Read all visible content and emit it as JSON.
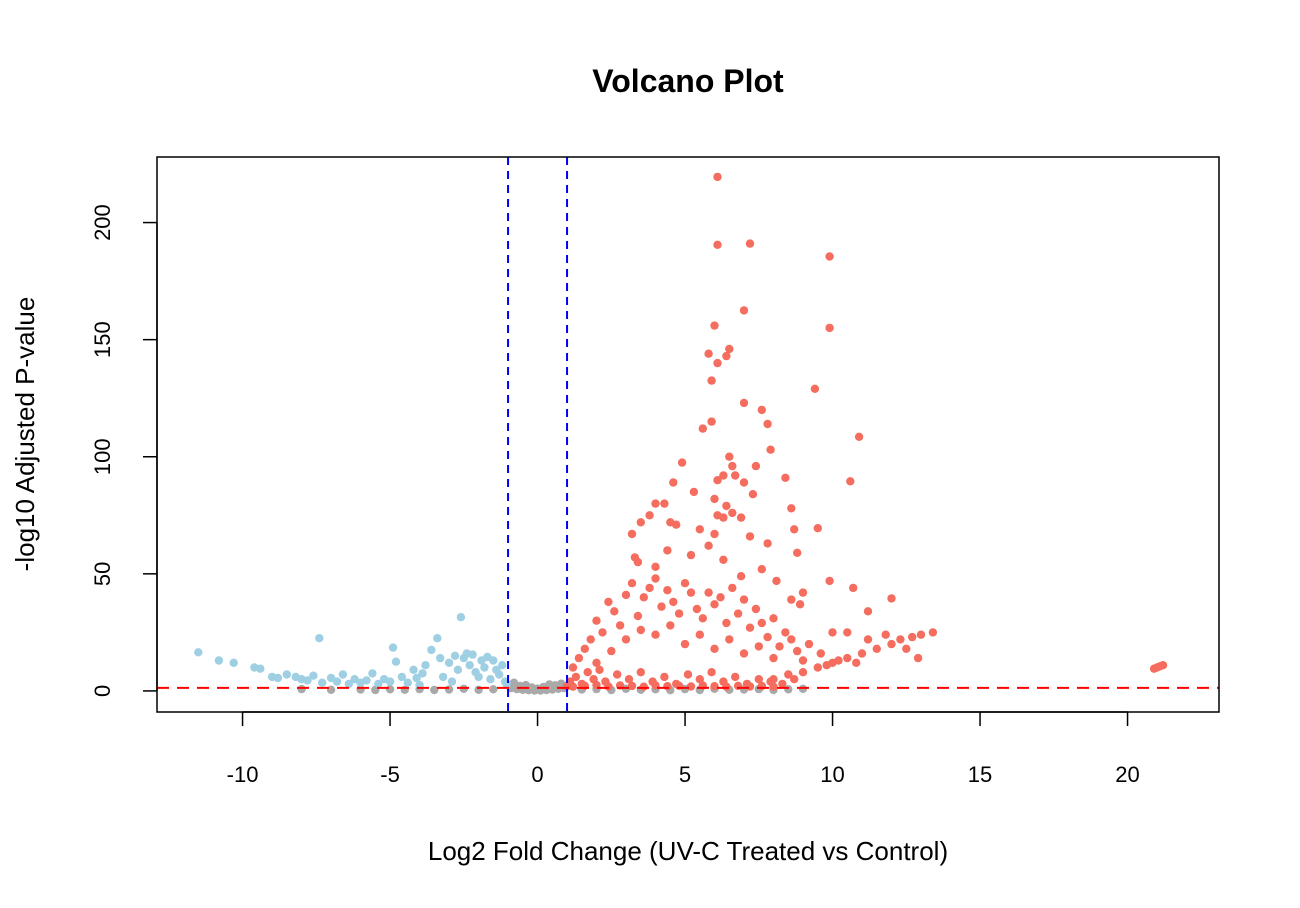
{
  "chart_data": {
    "type": "scatter",
    "title": "Volcano Plot",
    "xlabel": "Log2 Fold Change (UV-C Treated vs Control)",
    "ylabel": "-log10 Adjusted P-value",
    "xlim": [
      -12.9,
      23.1
    ],
    "ylim": [
      -9,
      228
    ],
    "x_ticks": [
      -10,
      -5,
      0,
      5,
      10,
      15,
      20
    ],
    "x_tick_labels": [
      "-10",
      "-5",
      "0",
      "5",
      "10",
      "15",
      "20"
    ],
    "y_ticks": [
      0,
      50,
      100,
      150,
      200
    ],
    "y_tick_labels": [
      "0",
      "50",
      "100",
      "150",
      "200"
    ],
    "grid": false,
    "legend": "none",
    "thresholds": {
      "log2fc": [
        -1,
        1
      ],
      "neg_log10_padj": 1.3,
      "vline_color": "#0000ff",
      "hline_color": "#ff0000"
    },
    "colors": {
      "up": "#f46d5f",
      "down": "#9ecfe2",
      "ns": "#a9a9a9"
    },
    "series": [
      {
        "group": "ns",
        "points": [
          [
            -0.9,
            1.2
          ],
          [
            -0.7,
            0.8
          ],
          [
            -0.5,
            0.5
          ],
          [
            -0.3,
            0.3
          ],
          [
            -0.1,
            0.2
          ],
          [
            0.1,
            0.2
          ],
          [
            0.3,
            0.4
          ],
          [
            0.5,
            0.6
          ],
          [
            0.7,
            0.9
          ],
          [
            0.9,
            1.2
          ],
          [
            -0.8,
            3.5
          ],
          [
            -0.6,
            2.1
          ],
          [
            0.6,
            2.4
          ],
          [
            0.8,
            3.1
          ],
          [
            1.5,
            0.6
          ],
          [
            2.0,
            0.8
          ],
          [
            2.5,
            0.4
          ],
          [
            3.0,
            0.9
          ],
          [
            3.5,
            0.5
          ],
          [
            4.0,
            0.7
          ],
          [
            4.5,
            0.3
          ],
          [
            5.0,
            0.8
          ],
          [
            5.5,
            0.4
          ],
          [
            6.0,
            0.9
          ],
          [
            6.5,
            0.5
          ],
          [
            7.0,
            0.6
          ],
          [
            7.5,
            0.8
          ],
          [
            8.0,
            0.4
          ],
          [
            8.5,
            0.7
          ],
          [
            9.0,
            0.9
          ],
          [
            -1.5,
            0.7
          ],
          [
            -2.0,
            0.5
          ],
          [
            -2.5,
            0.9
          ],
          [
            -3.0,
            0.6
          ],
          [
            -3.5,
            0.4
          ],
          [
            -4.0,
            0.8
          ],
          [
            -4.5,
            0.5
          ],
          [
            -5.0,
            0.7
          ],
          [
            -5.5,
            0.4
          ],
          [
            -6.0,
            0.6
          ],
          [
            -7.0,
            0.5
          ],
          [
            -8.0,
            0.8
          ],
          [
            0.0,
            1.0
          ],
          [
            -0.2,
            1.5
          ],
          [
            0.2,
            1.7
          ],
          [
            0.4,
            2.8
          ],
          [
            -0.4,
            2.5
          ]
        ]
      },
      {
        "group": "down",
        "points": [
          [
            -11.5,
            16.5
          ],
          [
            -10.8,
            13
          ],
          [
            -10.3,
            12
          ],
          [
            -9.6,
            10
          ],
          [
            -9.4,
            9.5
          ],
          [
            -9.0,
            6
          ],
          [
            -8.8,
            5.5
          ],
          [
            -8.5,
            7
          ],
          [
            -8.2,
            6
          ],
          [
            -8.0,
            5
          ],
          [
            -7.8,
            4.5
          ],
          [
            -7.6,
            6.5
          ],
          [
            -7.4,
            22.5
          ],
          [
            -7.3,
            3.5
          ],
          [
            -7.0,
            5.5
          ],
          [
            -6.8,
            4
          ],
          [
            -6.6,
            7
          ],
          [
            -6.4,
            3
          ],
          [
            -6.2,
            5
          ],
          [
            -6.0,
            3.5
          ],
          [
            -5.8,
            4.5
          ],
          [
            -5.6,
            7.5
          ],
          [
            -5.4,
            3
          ],
          [
            -5.2,
            5
          ],
          [
            -5.0,
            4
          ],
          [
            -4.9,
            18.5
          ],
          [
            -4.8,
            12.5
          ],
          [
            -4.6,
            6
          ],
          [
            -4.4,
            3.5
          ],
          [
            -4.2,
            9
          ],
          [
            -4.1,
            5.5
          ],
          [
            -4.0,
            2.5
          ],
          [
            -3.9,
            7.5
          ],
          [
            -3.8,
            11
          ],
          [
            -3.6,
            17.5
          ],
          [
            -3.4,
            22.5
          ],
          [
            -3.3,
            14
          ],
          [
            -3.2,
            6
          ],
          [
            -3.0,
            12
          ],
          [
            -2.9,
            4
          ],
          [
            -2.8,
            15
          ],
          [
            -2.7,
            9
          ],
          [
            -2.6,
            31.5
          ],
          [
            -2.5,
            14
          ],
          [
            -2.4,
            16
          ],
          [
            -2.3,
            11
          ],
          [
            -2.2,
            15.5
          ],
          [
            -2.1,
            8
          ],
          [
            -2.0,
            6
          ],
          [
            -1.9,
            13
          ],
          [
            -1.8,
            10
          ],
          [
            -1.7,
            14.5
          ],
          [
            -1.6,
            5
          ],
          [
            -1.5,
            13
          ],
          [
            -1.4,
            9
          ],
          [
            -1.3,
            7
          ],
          [
            -1.2,
            11
          ],
          [
            -1.1,
            4
          ],
          [
            -1.05,
            3
          ]
        ]
      },
      {
        "group": "up",
        "points": [
          [
            6.1,
            219.5
          ],
          [
            6.1,
            190.5
          ],
          [
            7.2,
            191
          ],
          [
            9.9,
            185.5
          ],
          [
            7.0,
            162.5
          ],
          [
            9.9,
            155
          ],
          [
            6.0,
            156
          ],
          [
            6.5,
            146
          ],
          [
            6.4,
            143
          ],
          [
            5.8,
            144
          ],
          [
            6.1,
            140
          ],
          [
            5.9,
            132.5
          ],
          [
            9.4,
            129
          ],
          [
            7.0,
            123
          ],
          [
            7.6,
            120
          ],
          [
            5.9,
            115
          ],
          [
            7.8,
            114
          ],
          [
            5.6,
            112
          ],
          [
            10.9,
            108.5
          ],
          [
            6.5,
            100
          ],
          [
            7.9,
            103
          ],
          [
            6.6,
            96
          ],
          [
            4.9,
            97.5
          ],
          [
            6.3,
            92
          ],
          [
            6.1,
            90
          ],
          [
            6.7,
            92
          ],
          [
            7.0,
            89
          ],
          [
            7.4,
            96
          ],
          [
            8.4,
            91
          ],
          [
            10.6,
            89.5
          ],
          [
            4.6,
            89
          ],
          [
            4.0,
            80
          ],
          [
            3.8,
            75
          ],
          [
            4.5,
            72
          ],
          [
            4.3,
            80
          ],
          [
            5.3,
            85
          ],
          [
            6.0,
            82
          ],
          [
            7.3,
            84
          ],
          [
            6.4,
            79
          ],
          [
            8.6,
            78
          ],
          [
            6.1,
            75
          ],
          [
            6.3,
            74
          ],
          [
            6.9,
            74
          ],
          [
            6.6,
            76
          ],
          [
            8.7,
            69
          ],
          [
            9.5,
            69.5
          ],
          [
            3.5,
            72
          ],
          [
            3.2,
            67
          ],
          [
            4.7,
            71
          ],
          [
            5.5,
            69
          ],
          [
            6.0,
            67
          ],
          [
            7.2,
            66
          ],
          [
            7.8,
            63
          ],
          [
            8.8,
            59
          ],
          [
            10.7,
            44
          ],
          [
            12.0,
            39.5
          ],
          [
            9.9,
            47
          ],
          [
            11.2,
            34
          ],
          [
            3.3,
            57
          ],
          [
            3.4,
            55
          ],
          [
            4.0,
            53
          ],
          [
            4.4,
            60
          ],
          [
            5.2,
            58
          ],
          [
            5.8,
            62
          ],
          [
            6.3,
            56
          ],
          [
            6.9,
            49
          ],
          [
            7.6,
            52
          ],
          [
            8.1,
            47
          ],
          [
            8.6,
            39
          ],
          [
            9.0,
            42
          ],
          [
            8.9,
            37
          ],
          [
            10.0,
            25
          ],
          [
            10.5,
            25
          ],
          [
            11.2,
            22
          ],
          [
            11.8,
            24
          ],
          [
            12.3,
            22
          ],
          [
            12.7,
            23
          ],
          [
            13.0,
            24
          ],
          [
            13.4,
            25
          ],
          [
            12.0,
            20
          ],
          [
            11.5,
            18
          ],
          [
            11.0,
            16
          ],
          [
            10.5,
            14
          ],
          [
            10.0,
            12
          ],
          [
            9.5,
            10
          ],
          [
            9.0,
            8
          ],
          [
            8.5,
            7
          ],
          [
            8.0,
            5
          ],
          [
            2.0,
            30
          ],
          [
            2.2,
            25
          ],
          [
            2.4,
            38
          ],
          [
            2.6,
            34
          ],
          [
            2.8,
            28
          ],
          [
            3.0,
            41
          ],
          [
            3.2,
            46
          ],
          [
            3.4,
            32
          ],
          [
            3.6,
            40
          ],
          [
            3.8,
            44
          ],
          [
            4.0,
            48
          ],
          [
            4.2,
            36
          ],
          [
            4.4,
            43
          ],
          [
            4.6,
            38
          ],
          [
            4.8,
            33
          ],
          [
            5.0,
            46
          ],
          [
            5.2,
            42
          ],
          [
            5.4,
            35
          ],
          [
            5.6,
            31
          ],
          [
            5.8,
            42
          ],
          [
            6.0,
            37
          ],
          [
            6.2,
            40
          ],
          [
            6.4,
            29
          ],
          [
            6.6,
            44
          ],
          [
            6.8,
            33
          ],
          [
            7.0,
            39
          ],
          [
            7.2,
            27
          ],
          [
            7.4,
            35
          ],
          [
            7.6,
            29
          ],
          [
            7.8,
            23
          ],
          [
            8.0,
            31
          ],
          [
            8.2,
            19
          ],
          [
            8.4,
            25
          ],
          [
            8.6,
            22
          ],
          [
            8.8,
            17
          ],
          [
            9.2,
            20
          ],
          [
            9.6,
            16
          ],
          [
            10.2,
            13
          ],
          [
            10.8,
            12
          ],
          [
            12.5,
            18
          ],
          [
            12.9,
            14
          ],
          [
            1.2,
            10
          ],
          [
            1.4,
            14
          ],
          [
            1.6,
            18
          ],
          [
            1.8,
            22
          ],
          [
            2.0,
            12
          ],
          [
            2.5,
            17
          ],
          [
            3.0,
            22
          ],
          [
            3.5,
            26
          ],
          [
            4.0,
            24
          ],
          [
            4.5,
            28
          ],
          [
            5.0,
            20
          ],
          [
            5.5,
            24
          ],
          [
            6.0,
            18
          ],
          [
            6.5,
            22
          ],
          [
            7.0,
            16
          ],
          [
            7.5,
            19
          ],
          [
            8.0,
            14
          ],
          [
            9.0,
            13
          ],
          [
            9.8,
            11
          ],
          [
            1.1,
            4
          ],
          [
            1.3,
            6
          ],
          [
            1.5,
            3
          ],
          [
            1.7,
            8
          ],
          [
            1.9,
            5
          ],
          [
            2.1,
            9
          ],
          [
            2.3,
            4
          ],
          [
            2.7,
            7
          ],
          [
            3.1,
            5
          ],
          [
            3.5,
            8
          ],
          [
            3.9,
            4
          ],
          [
            4.3,
            6
          ],
          [
            4.7,
            3
          ],
          [
            5.1,
            7
          ],
          [
            5.5,
            5
          ],
          [
            5.9,
            8
          ],
          [
            6.3,
            4
          ],
          [
            6.7,
            6
          ],
          [
            7.1,
            3
          ],
          [
            7.5,
            5
          ],
          [
            7.9,
            4
          ],
          [
            8.3,
            3
          ],
          [
            8.7,
            5
          ],
          [
            1.0,
            2
          ],
          [
            1.2,
            1.8
          ],
          [
            1.6,
            2.2
          ],
          [
            2.0,
            2.5
          ],
          [
            2.4,
            1.9
          ],
          [
            2.8,
            2.3
          ],
          [
            3.2,
            2.1
          ],
          [
            3.6,
            1.8
          ],
          [
            4.0,
            2.4
          ],
          [
            4.4,
            2
          ],
          [
            4.8,
            2.2
          ],
          [
            5.2,
            1.9
          ],
          [
            5.6,
            2.3
          ],
          [
            6.0,
            2
          ],
          [
            6.4,
            1.8
          ],
          [
            6.8,
            2.2
          ],
          [
            7.2,
            1.9
          ],
          [
            7.6,
            2.1
          ],
          [
            8.0,
            1.8
          ],
          [
            20.9,
            9.5
          ],
          [
            21.0,
            10
          ],
          [
            21.1,
            10.5
          ],
          [
            21.2,
            11
          ]
        ]
      }
    ]
  }
}
